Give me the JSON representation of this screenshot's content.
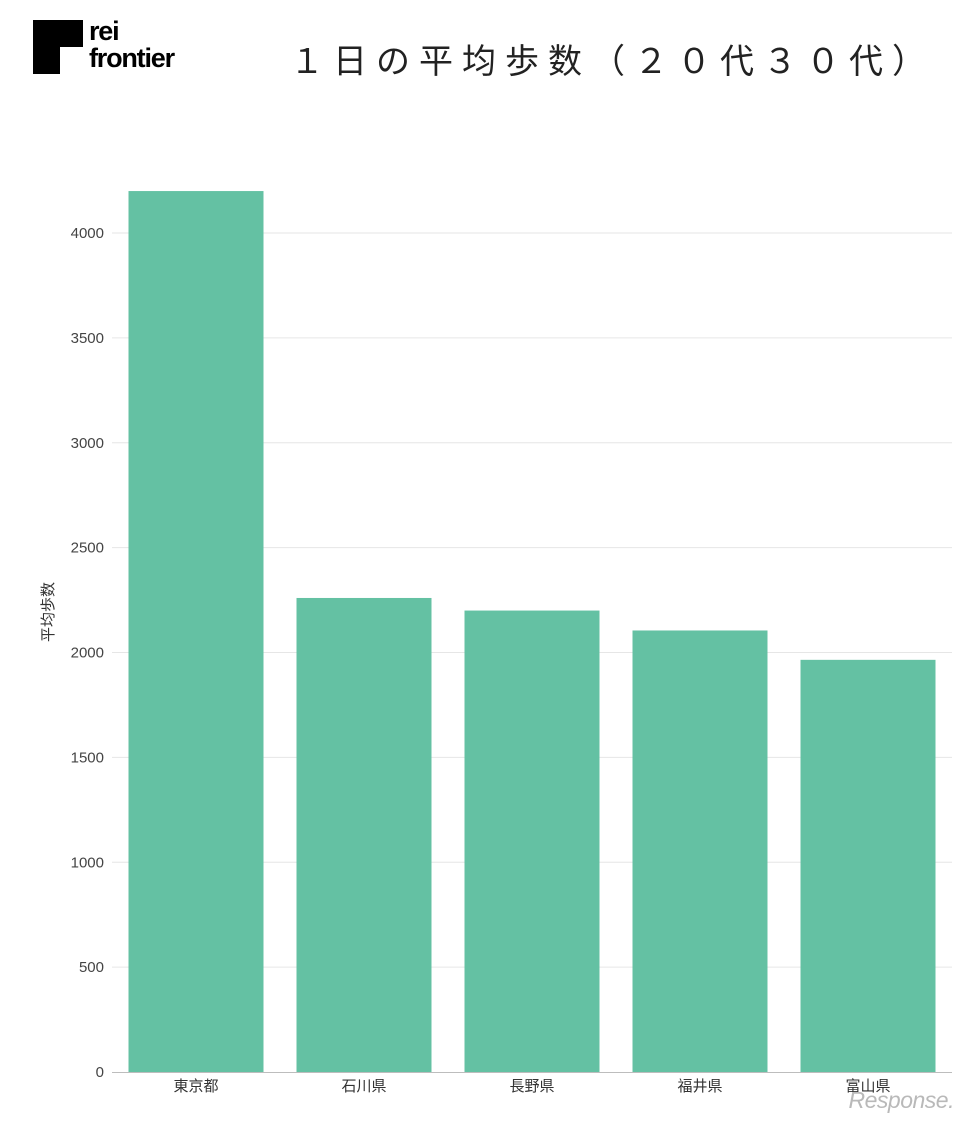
{
  "logo": {
    "line1": "rei",
    "line2": "frontier"
  },
  "watermark": "Response.",
  "colors": {
    "bar": "#64c1a3",
    "grid": "#e6e6e6",
    "axis": "#bdbdbd"
  },
  "chart_data": {
    "type": "bar",
    "title": "１日の平均歩数（２０代３０代）",
    "xlabel": "",
    "ylabel": "平均歩数",
    "categories": [
      "東京都",
      "石川県",
      "長野県",
      "福井県",
      "富山県"
    ],
    "values": [
      4200,
      2260,
      2200,
      2105,
      1965
    ],
    "ylim": [
      0,
      4400
    ],
    "yticks": [
      0,
      500,
      1000,
      1500,
      2000,
      2500,
      3000,
      3500,
      4000
    ],
    "grid": true,
    "legend": "none"
  }
}
